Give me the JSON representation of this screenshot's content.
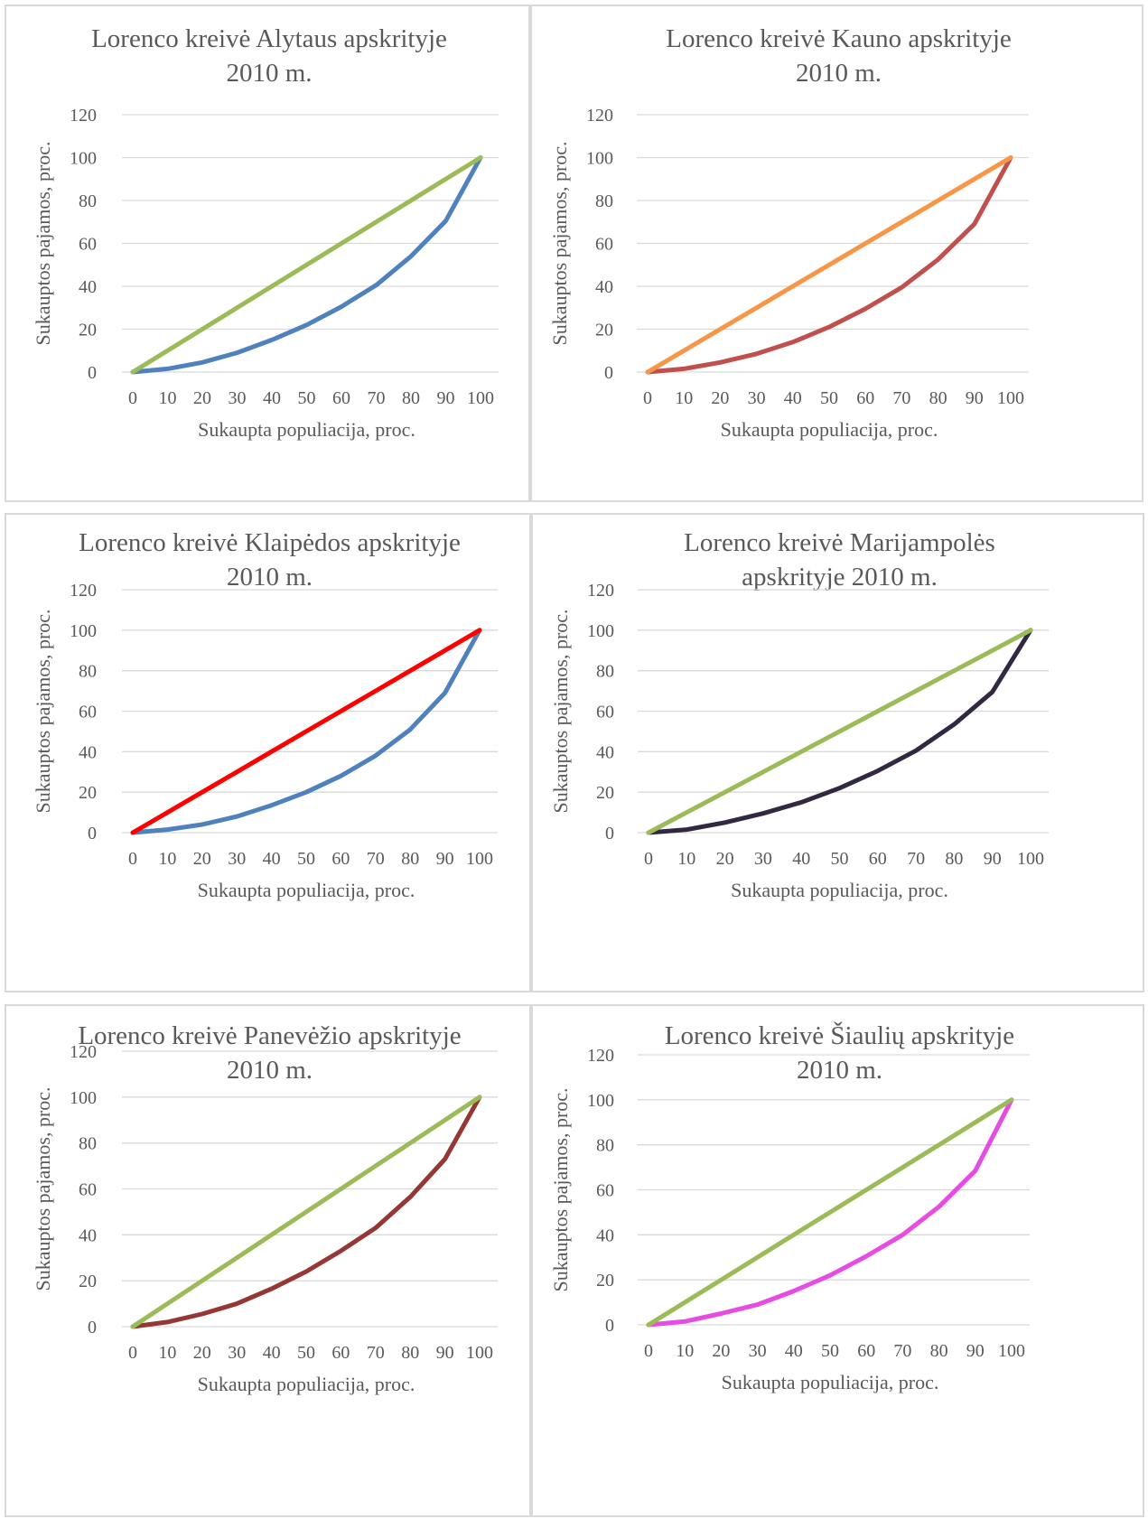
{
  "chart_data": [
    {
      "type": "line",
      "title_lines": [
        "Lorenco kreivė Alytaus apskrityje",
        "2010 m."
      ],
      "xlabel": "Sukaupta populiacija, proc.",
      "ylabel": "Sukauptos pajamos, proc.",
      "x": [
        0,
        10,
        20,
        30,
        40,
        50,
        60,
        70,
        80,
        90,
        100
      ],
      "xlim": [
        0,
        100
      ],
      "ylim": [
        0,
        120
      ],
      "yticks": [
        0,
        20,
        40,
        60,
        80,
        100,
        120
      ],
      "grid": true,
      "series": [
        {
          "values": [
            0,
            1.5,
            4.5,
            9,
            15,
            22,
            30.5,
            40.5,
            54,
            70.5,
            100
          ],
          "color": "#4f81bd"
        },
        {
          "values": [
            0,
            10,
            20,
            30,
            40,
            50,
            60,
            70,
            80,
            90,
            100
          ],
          "color": "#9bbb59"
        }
      ]
    },
    {
      "type": "line",
      "title_lines": [
        "Lorenco kreivė Kauno apskrityje",
        "2010 m."
      ],
      "xlabel": "Sukaupta populiacija, proc.",
      "ylabel": "Sukauptos pajamos, proc.",
      "x": [
        0,
        10,
        20,
        30,
        40,
        50,
        60,
        70,
        80,
        90,
        100
      ],
      "xlim": [
        0,
        100
      ],
      "ylim": [
        0,
        120
      ],
      "yticks": [
        0,
        20,
        40,
        60,
        80,
        100,
        120
      ],
      "grid": true,
      "series": [
        {
          "values": [
            0,
            1.5,
            4.5,
            8.5,
            14,
            21,
            29.5,
            39.5,
            52.5,
            69,
            100
          ],
          "color": "#c0504d"
        },
        {
          "values": [
            0,
            10,
            20,
            30,
            40,
            50,
            60,
            70,
            80,
            90,
            100
          ],
          "color": "#f79646"
        }
      ]
    },
    {
      "type": "line",
      "title_lines": [
        "Lorenco kreivė Klaipėdos apskrityje",
        "2010 m."
      ],
      "xlabel": "Sukaupta populiacija, proc.",
      "ylabel": "Sukauptos pajamos, proc.",
      "x": [
        0,
        10,
        20,
        30,
        40,
        50,
        60,
        70,
        80,
        90,
        100
      ],
      "xlim": [
        0,
        100
      ],
      "ylim": [
        0,
        120
      ],
      "yticks": [
        0,
        20,
        40,
        60,
        80,
        100,
        120
      ],
      "grid": true,
      "series": [
        {
          "values": [
            0,
            1.5,
            4,
            8,
            13.5,
            20,
            28,
            38,
            51,
            69,
            100
          ],
          "color": "#4f81bd"
        },
        {
          "values": [
            0,
            10,
            20,
            30,
            40,
            50,
            60,
            70,
            80,
            90,
            100
          ],
          "color": "#ff0000"
        }
      ]
    },
    {
      "type": "line",
      "title_lines": [
        "Lorenco kreivė Marijampolės",
        "apskrityje 2010 m."
      ],
      "xlabel": "Sukaupta populiacija, proc.",
      "ylabel": "Sukauptos pajamos, proc.",
      "x": [
        0,
        10,
        20,
        30,
        40,
        50,
        60,
        70,
        80,
        90,
        100
      ],
      "xlim": [
        0,
        100
      ],
      "ylim": [
        0,
        120
      ],
      "yticks": [
        0,
        20,
        40,
        60,
        80,
        100,
        120
      ],
      "grid": true,
      "series": [
        {
          "values": [
            0,
            1.5,
            5,
            9.5,
            15,
            22,
            30.5,
            40.5,
            53.5,
            69.5,
            100
          ],
          "color": "#332841"
        },
        {
          "values": [
            0,
            10,
            20,
            30,
            40,
            50,
            60,
            70,
            80,
            90,
            100
          ],
          "color": "#9bbb59"
        }
      ]
    },
    {
      "type": "line",
      "title_lines": [
        "Lorenco kreivė Panevėžio apskrityje",
        "2010 m."
      ],
      "xlabel": "Sukaupta populiacija, proc.",
      "ylabel": "Sukauptos pajamos, proc.",
      "x": [
        0,
        10,
        20,
        30,
        40,
        50,
        60,
        70,
        80,
        90,
        100
      ],
      "xlim": [
        0,
        100
      ],
      "ylim": [
        0,
        120
      ],
      "yticks": [
        0,
        20,
        40,
        60,
        80,
        100,
        120
      ],
      "grid": true,
      "series": [
        {
          "values": [
            0,
            2,
            5.5,
            10,
            16.5,
            24,
            33,
            43,
            56.5,
            73,
            100
          ],
          "color": "#953735"
        },
        {
          "values": [
            0,
            10,
            20,
            30,
            40,
            50,
            60,
            70,
            80,
            90,
            100
          ],
          "color": "#9bbb59"
        }
      ]
    },
    {
      "type": "line",
      "title_lines": [
        "Lorenco kreivė Šiaulių apskrityje",
        "2010 m."
      ],
      "xlabel": "Sukaupta populiacija, proc.",
      "ylabel": "Sukauptos pajamos, proc.",
      "x": [
        0,
        10,
        20,
        30,
        40,
        50,
        60,
        70,
        80,
        90,
        100
      ],
      "xlim": [
        0,
        100
      ],
      "ylim": [
        0,
        120
      ],
      "yticks": [
        0,
        20,
        40,
        60,
        80,
        100,
        120
      ],
      "grid": true,
      "series": [
        {
          "values": [
            0,
            1.5,
            5,
            9,
            15,
            22,
            30.5,
            40,
            52.5,
            68.5,
            100
          ],
          "color": "#e64ce1"
        },
        {
          "values": [
            0,
            10,
            20,
            30,
            40,
            50,
            60,
            70,
            80,
            90,
            100
          ],
          "color": "#9bbb59"
        }
      ]
    }
  ]
}
